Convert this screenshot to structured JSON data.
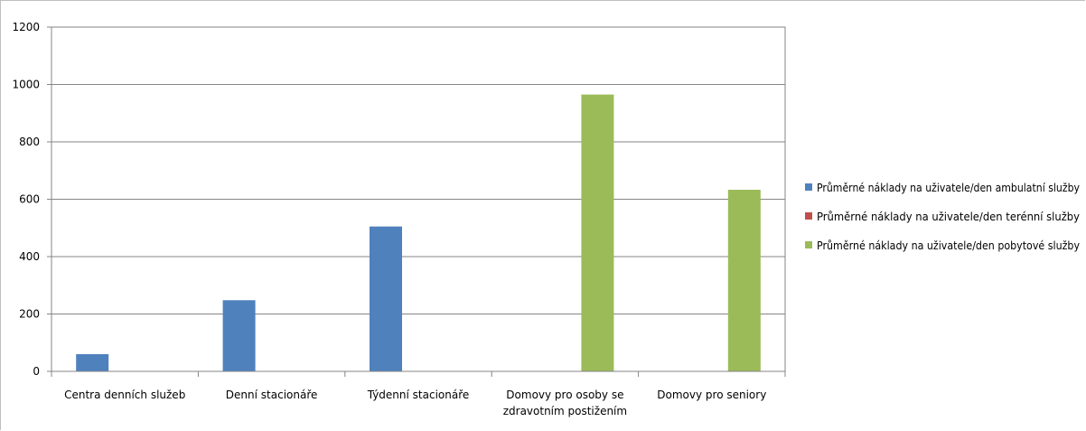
{
  "chart_data": {
    "type": "bar",
    "categories": [
      [
        "Centra denních služeb"
      ],
      [
        "Denní stacionáře"
      ],
      [
        "Týdenní stacionáře"
      ],
      [
        "Domovy pro osoby se",
        "zdravotním postižením"
      ],
      [
        "Domovy pro seniory"
      ]
    ],
    "series": [
      {
        "name": "Průměrné náklady na uživatele/den ambulatní služby",
        "color": "#4f81bd",
        "values": [
          60,
          248,
          505,
          null,
          null
        ]
      },
      {
        "name": "Průměrné náklady na uživatele/den terénní služby",
        "color": "#c0504d",
        "values": [
          null,
          null,
          null,
          null,
          null
        ]
      },
      {
        "name": "Průměrné náklady na uživatele/den pobytové služby",
        "color": "#9bbb59",
        "values": [
          null,
          null,
          null,
          965,
          633
        ]
      }
    ],
    "yticks": [
      0,
      200,
      400,
      600,
      800,
      1000,
      1200
    ],
    "ylim": [
      0,
      1200
    ],
    "grid": true,
    "legend": "right",
    "title": "",
    "xlabel": "",
    "ylabel": ""
  }
}
